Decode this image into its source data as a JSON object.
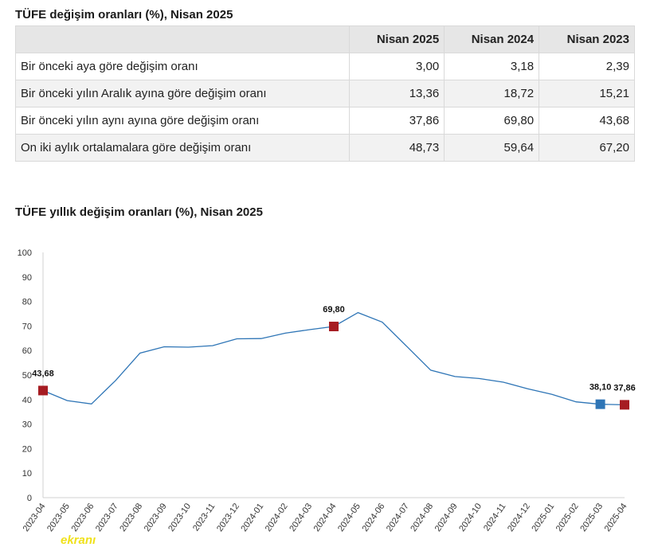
{
  "table": {
    "title": "TÜFE değişim oranları (%), Nisan 2025",
    "headers": [
      "",
      "Nisan 2025",
      "Nisan 2024",
      "Nisan 2023"
    ],
    "rows": [
      {
        "label": "Bir önceki aya göre değişim oranı",
        "values": [
          "3,00",
          "3,18",
          "2,39"
        ]
      },
      {
        "label": "Bir önceki yılın Aralık ayına göre değişim oranı",
        "values": [
          "13,36",
          "18,72",
          "15,21"
        ]
      },
      {
        "label": "Bir önceki yılın aynı ayına göre değişim oranı",
        "values": [
          "37,86",
          "69,80",
          "43,68"
        ]
      },
      {
        "label": "On iki aylık ortalamalara göre değişim oranı",
        "values": [
          "48,73",
          "59,64",
          "67,20"
        ]
      }
    ]
  },
  "watermark": "ekranı",
  "chart_data": {
    "type": "line",
    "title": "TÜFE yıllık değişim oranları (%), Nisan 2025",
    "x": [
      "2023-04",
      "2023-05",
      "2023-06",
      "2023-07",
      "2023-08",
      "2023-09",
      "2023-10",
      "2023-11",
      "2023-12",
      "2024-01",
      "2024-02",
      "2024-03",
      "2024-04",
      "2024-05",
      "2024-06",
      "2024-07",
      "2024-08",
      "2024-09",
      "2024-10",
      "2024-11",
      "2024-12",
      "2025-01",
      "2025-02",
      "2025-03",
      "2025-04"
    ],
    "series": [
      {
        "values": [
          43.68,
          39.59,
          38.21,
          47.83,
          58.94,
          61.53,
          61.36,
          61.98,
          64.77,
          64.86,
          67.07,
          68.5,
          69.8,
          75.45,
          71.6,
          61.78,
          51.97,
          49.38,
          48.58,
          47.09,
          44.38,
          42.12,
          39.05,
          38.1,
          37.86
        ],
        "color": "#2e75b6"
      }
    ],
    "highlights": [
      {
        "index": 0,
        "label": "43,68",
        "color": "#a61c22"
      },
      {
        "index": 12,
        "label": "69,80",
        "color": "#a61c22"
      },
      {
        "index": 23,
        "label": "38,10",
        "color": "#2e75b6"
      },
      {
        "index": 24,
        "label": "37,86",
        "color": "#a61c22"
      }
    ],
    "ylim": [
      0,
      100
    ],
    "yticks": [
      0,
      10,
      20,
      30,
      40,
      50,
      60,
      70,
      80,
      90,
      100
    ],
    "grid": false
  }
}
